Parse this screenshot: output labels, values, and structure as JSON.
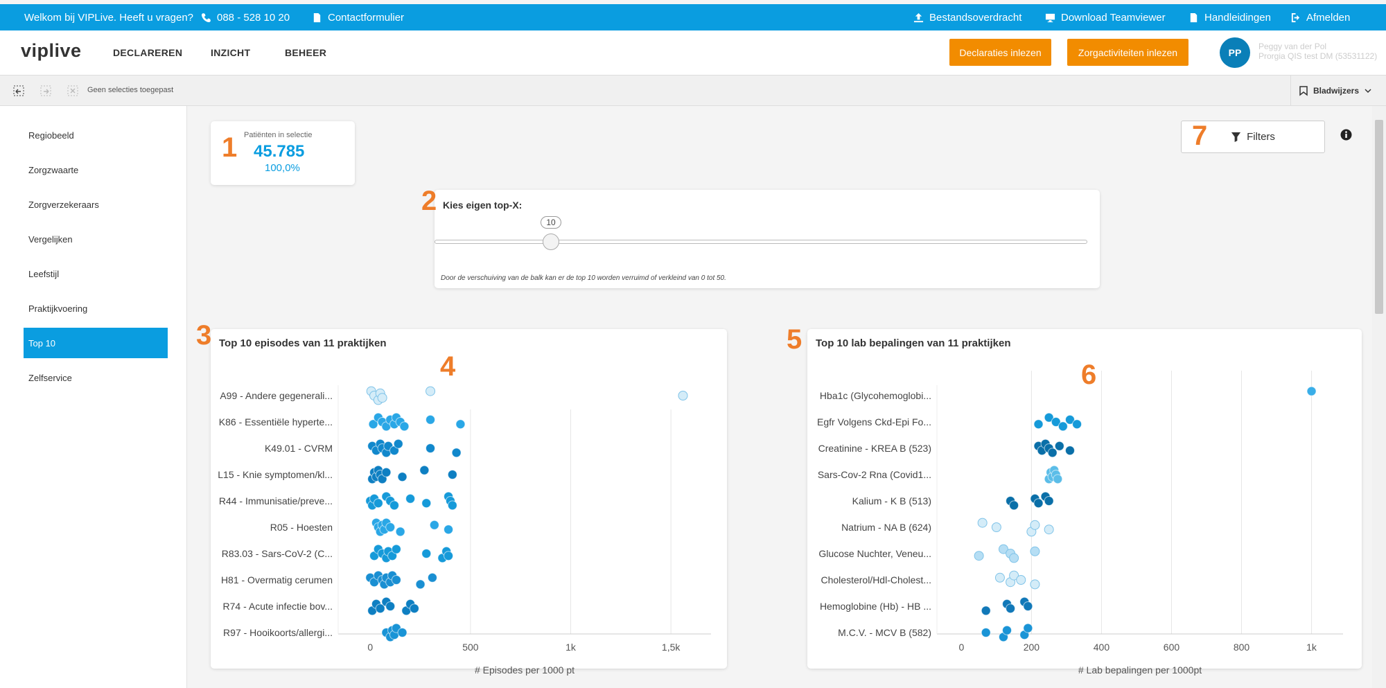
{
  "topbar": {
    "welcome": "Welkom bij VIPLive. Heeft u vragen?",
    "phone": "088 - 528 10 20",
    "contact": "Contactformulier",
    "transfer": "Bestandsoverdracht",
    "teamviewer": "Download Teamviewer",
    "manuals": "Handleidingen",
    "logout": "Afmelden"
  },
  "nav": {
    "logo": "viplive",
    "links": [
      "DECLAREREN",
      "INZICHT",
      "BEHEER"
    ],
    "btn_declaraties": "Declaraties inlezen",
    "btn_zorg": "Zorgactiviteiten inlezen",
    "avatar": "PP",
    "user_name": "Peggy van der Pol",
    "user_org": "Prorgia QIS test DM (53531122)"
  },
  "selection": {
    "label": "Geen selecties toegepast",
    "bookmarks": "Bladwijzers"
  },
  "sidebar": {
    "items": [
      "Regiobeeld",
      "Zorgzwaarte",
      "Zorgverzekeraars",
      "Vergelijken",
      "Leefstijl",
      "Praktijkvoering",
      "Top 10",
      "Zelfservice"
    ],
    "active": "Top 10"
  },
  "kpi": {
    "label": "Patiënten in selectie",
    "value": "45.785",
    "pct": "100,0%"
  },
  "slider": {
    "title": "Kies eigen top-X:",
    "value": 10,
    "min": 0,
    "max": 50,
    "value_label": "10",
    "hint": "Door de verschuiving van de balk kan er de top 10 worden verruimd of verkleind van 0 tot 50."
  },
  "filters": {
    "label": "Filters"
  },
  "markers": [
    "1",
    "2",
    "3",
    "4",
    "5",
    "6",
    "7"
  ],
  "chart_data": [
    {
      "type": "scatter",
      "title": "Top 10 episodes van 11 praktijken",
      "xlabel": "# Episodes per 1000 pt",
      "xlim": [
        -160,
        1700
      ],
      "xticks": [
        0,
        500,
        1000,
        1500
      ],
      "xtick_labels": [
        "0",
        "500",
        "1k",
        "1,5k"
      ],
      "categories": [
        "A99 - Andere gegenerali...",
        "K86 - Essentiële hyperte...",
        "K49.01 - CVRM",
        "L15 - Knie symptomen/kl...",
        "R44 - Immunisatie/preve...",
        "R05 - Hoesten",
        "R83.03 - Sars-CoV-2 (C...",
        "H81 - Overmatig cerumen",
        "R74 - Acute infectie bov...",
        "R97 - Hooikoorts/allergi..."
      ],
      "colors": [
        "#d4ecf8",
        "#2aa7e6",
        "#1188cc",
        "#0e7fc2",
        "#169ad9",
        "#2aa7e6",
        "#169ad9",
        "#1a8fd2",
        "#0e7fc2",
        "#1a94d6"
      ],
      "points": [
        [
          5,
          20,
          40,
          50,
          60,
          300,
          1560
        ],
        [
          15,
          40,
          60,
          80,
          100,
          120,
          130,
          150,
          170,
          300,
          450
        ],
        [
          10,
          30,
          50,
          60,
          80,
          90,
          120,
          140,
          300,
          430
        ],
        [
          10,
          20,
          30,
          40,
          50,
          60,
          80,
          160,
          270,
          410
        ],
        [
          0,
          10,
          20,
          40,
          80,
          100,
          120,
          200,
          280,
          390,
          400,
          410
        ],
        [
          30,
          40,
          50,
          60,
          70,
          80,
          100,
          150,
          320,
          390
        ],
        [
          20,
          40,
          60,
          80,
          90,
          110,
          130,
          280,
          360,
          380,
          390
        ],
        [
          0,
          20,
          40,
          60,
          70,
          80,
          100,
          110,
          130,
          250,
          310
        ],
        [
          10,
          30,
          50,
          80,
          100,
          180,
          200,
          220
        ],
        [
          80,
          100,
          110,
          120,
          130,
          160
        ]
      ]
    },
    {
      "type": "scatter",
      "title": "Top 10 lab bepalingen van 11 praktijken",
      "xlabel": "# Lab bepalingen per 1000pt",
      "xlim": [
        -70,
        1090
      ],
      "xticks": [
        0,
        200,
        400,
        600,
        800,
        1000
      ],
      "xtick_labels": [
        "0",
        "200",
        "400",
        "600",
        "800",
        "1k"
      ],
      "categories": [
        "Hba1c (Glycohemoglobi...",
        "Egfr Volgens Ckd-Epi Fo...",
        "Creatinine - KREA B  (523)",
        "Sars-Cov-2 Rna (Covid1...",
        "Kalium - K B  (513)",
        "Natrium - NA B  (624)",
        "Glucose Nuchter, Veneu...",
        "Cholesterol/Hdl-Cholest...",
        "Hemoglobine (Hb) - HB ...",
        "M.C.V. - MCV B  (582)"
      ],
      "colors": [
        "#3aaee8",
        "#169ad9",
        "#0a6fa8",
        "#5bbde8",
        "#0a6fa8",
        "#d4ecf8",
        "#b6def4",
        "#d4ecf8",
        "#1178b8",
        "#1a94d6"
      ],
      "points": [
        [
          1000
        ],
        [
          220,
          250,
          270,
          290,
          310,
          330
        ],
        [
          220,
          230,
          240,
          250,
          260,
          280,
          310
        ],
        [
          250,
          255,
          260,
          265,
          270,
          275
        ],
        [
          140,
          150,
          210,
          220,
          240,
          250
        ],
        [
          60,
          100,
          200,
          210,
          250
        ],
        [
          50,
          120,
          140,
          150,
          210
        ],
        [
          110,
          140,
          150,
          170,
          210
        ],
        [
          70,
          130,
          140,
          180,
          190
        ],
        [
          70,
          120,
          130,
          180,
          190
        ]
      ]
    }
  ]
}
